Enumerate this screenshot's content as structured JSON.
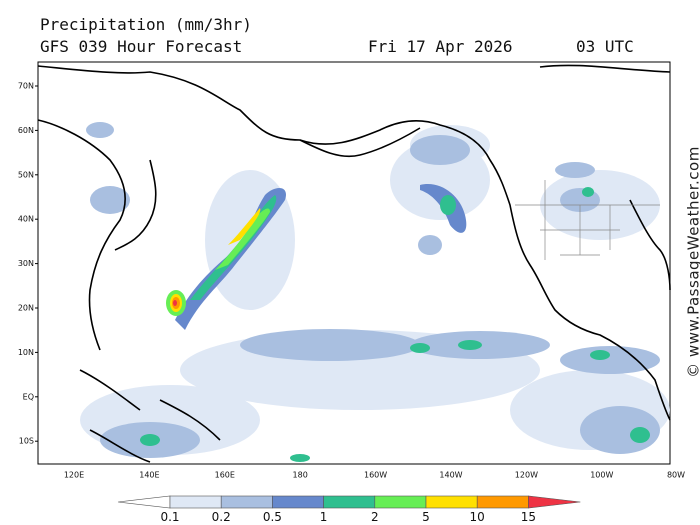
{
  "header": {
    "title": "Precipitation (mm/3hr)",
    "model": "GFS 039 Hour Forecast",
    "date": "Fri 17 Apr 2026",
    "time": "03 UTC"
  },
  "map": {
    "lat_labels": [
      "70N",
      "60N",
      "50N",
      "40N",
      "30N",
      "20N",
      "10N",
      "EQ",
      "10S"
    ],
    "lon_labels": [
      "120E",
      "140E",
      "160E",
      "180",
      "160W",
      "140W",
      "120W",
      "100W",
      "80W"
    ]
  },
  "legend": {
    "labels": [
      "0.1",
      "0.2",
      "0.5",
      "1",
      "2",
      "5",
      "10",
      "15"
    ],
    "colors": [
      "#ffffff",
      "#dfe8f5",
      "#a9bfe0",
      "#6688cc",
      "#2fbf8f",
      "#66ee55",
      "#ffe000",
      "#ff9900",
      "#ee3344"
    ]
  },
  "watermark": "© www.PassageWeather.com"
}
